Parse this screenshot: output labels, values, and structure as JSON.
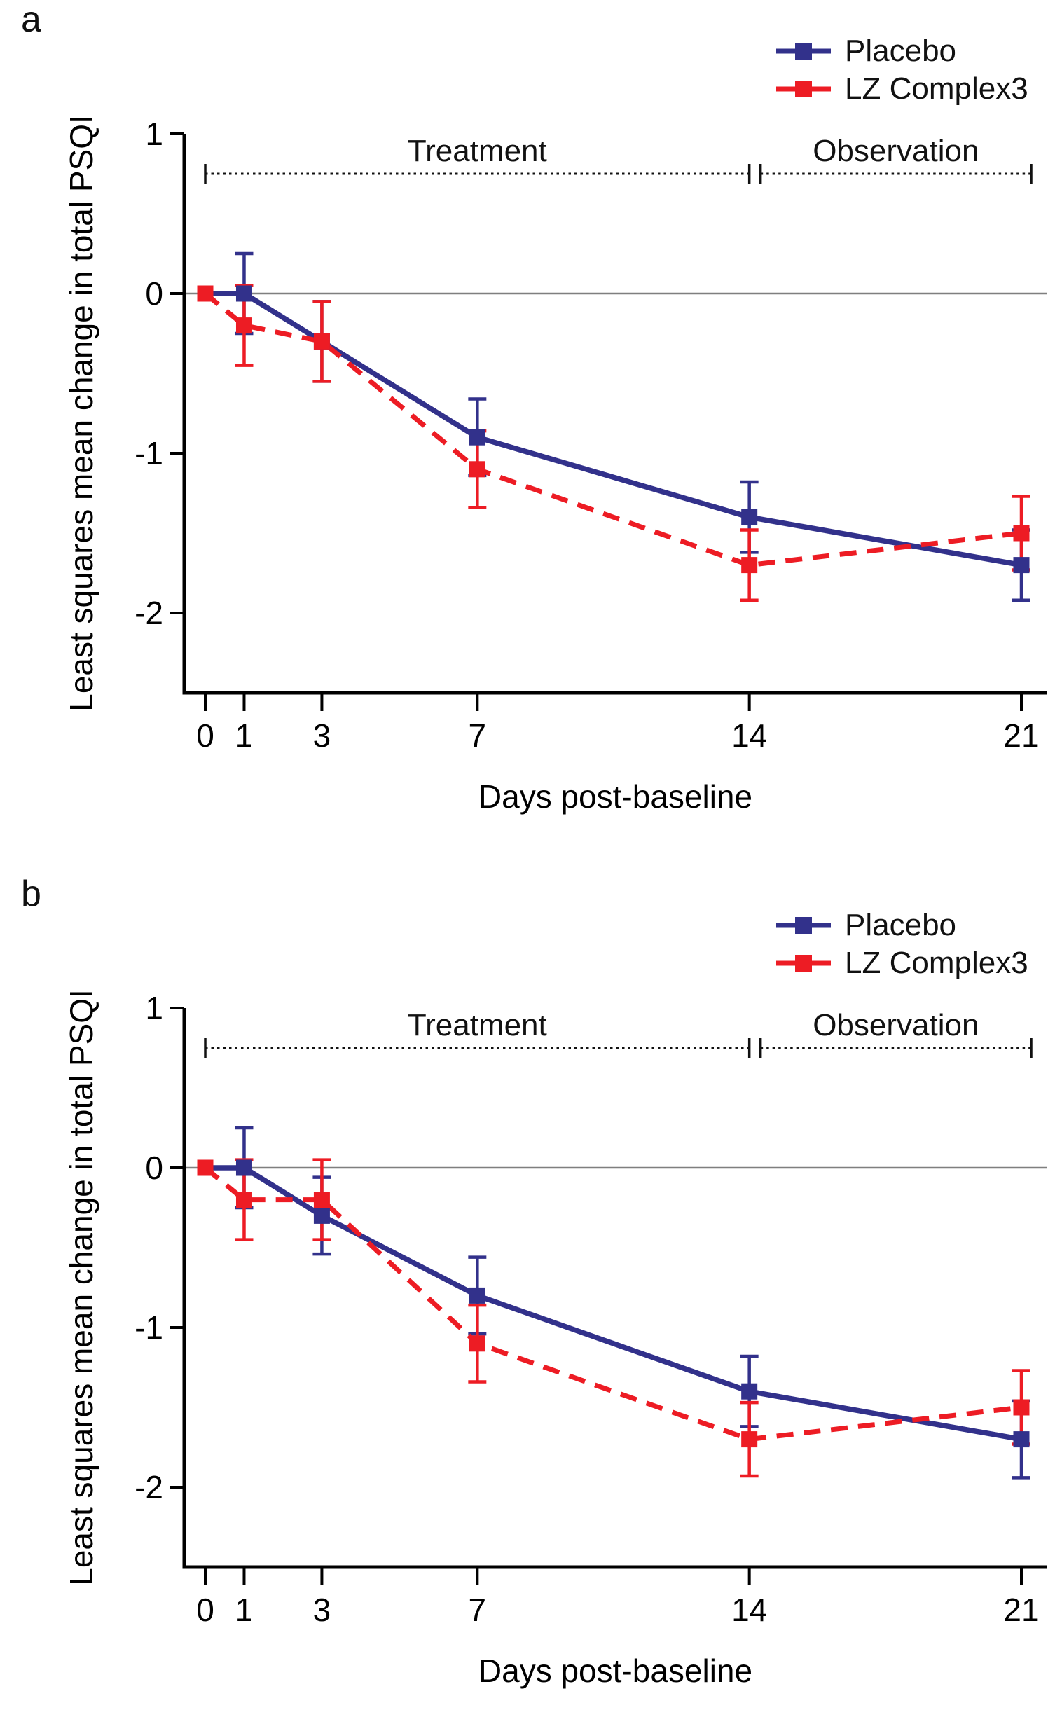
{
  "figure": {
    "panels": [
      {
        "label": "a"
      },
      {
        "label": "b"
      }
    ],
    "colors": {
      "placebo": "#32318B",
      "lz_complex3": "#ED1C24",
      "zero_line": "#7F7F7F",
      "axis": "#000000",
      "annotation": "#111111"
    }
  },
  "chart_data": [
    {
      "type": "line",
      "panel": "a",
      "title": "",
      "xlabel": "Days post-baseline",
      "ylabel": "Least squares mean change in total PSQI",
      "x": [
        0,
        1,
        3,
        7,
        14,
        21
      ],
      "xticks": [
        "0",
        "1",
        "3",
        "7",
        "14",
        "21"
      ],
      "yticks": [
        1,
        0,
        -1,
        -2
      ],
      "xlim": [
        0,
        21
      ],
      "ylim": [
        -2.5,
        1
      ],
      "grid": "zero-line-only",
      "legend_position": "top-right",
      "periods": [
        {
          "label": "Treatment",
          "x_start": 0,
          "x_end": 14,
          "y": 0.75
        },
        {
          "label": "Observation",
          "x_start": 14,
          "x_end": 21,
          "y": 0.75
        }
      ],
      "series": [
        {
          "name": "Placebo",
          "color": "#32318B",
          "line_style": "solid",
          "marker": "square",
          "values": [
            0,
            0,
            -0.3,
            -0.9,
            -1.4,
            -1.7
          ],
          "errors": [
            0,
            0.25,
            0.25,
            0.24,
            0.22,
            0.22
          ]
        },
        {
          "name": "LZ Complex3",
          "color": "#ED1C24",
          "line_style": "dashed",
          "marker": "square",
          "values": [
            0,
            -0.2,
            -0.3,
            -1.1,
            -1.7,
            -1.5
          ],
          "errors": [
            0,
            0.25,
            0.25,
            0.24,
            0.22,
            0.23
          ]
        }
      ]
    },
    {
      "type": "line",
      "panel": "b",
      "title": "",
      "xlabel": "Days post-baseline",
      "ylabel": "Least squares mean change in total PSQI",
      "x": [
        0,
        1,
        3,
        7,
        14,
        21
      ],
      "xticks": [
        "0",
        "1",
        "3",
        "7",
        "14",
        "21"
      ],
      "yticks": [
        1,
        0,
        -1,
        -2
      ],
      "xlim": [
        0,
        21
      ],
      "ylim": [
        -2.5,
        1
      ],
      "grid": "zero-line-only",
      "legend_position": "top-right",
      "periods": [
        {
          "label": "Treatment",
          "x_start": 0,
          "x_end": 14,
          "y": 0.75
        },
        {
          "label": "Observation",
          "x_start": 14,
          "x_end": 21,
          "y": 0.75
        }
      ],
      "series": [
        {
          "name": "Placebo",
          "color": "#32318B",
          "line_style": "solid",
          "marker": "square",
          "values": [
            0,
            0,
            -0.3,
            -0.8,
            -1.4,
            -1.7
          ],
          "errors": [
            0,
            0.25,
            0.24,
            0.24,
            0.22,
            0.24
          ]
        },
        {
          "name": "LZ Complex3",
          "color": "#ED1C24",
          "line_style": "dashed",
          "marker": "square",
          "values": [
            0,
            -0.2,
            -0.2,
            -1.1,
            -1.7,
            -1.5
          ],
          "errors": [
            0,
            0.25,
            0.25,
            0.24,
            0.23,
            0.23
          ]
        }
      ]
    }
  ]
}
